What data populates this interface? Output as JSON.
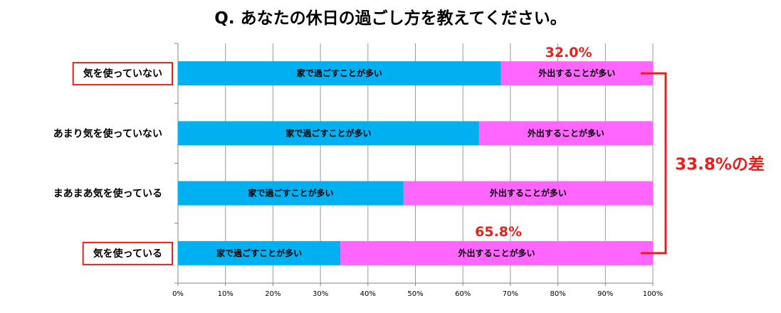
{
  "chart_data": {
    "type": "bar",
    "orientation": "horizontal",
    "stacked": "percent",
    "title": "Q. あなたの休日の過ごし方を教えてください。",
    "categories": [
      "気を使っていない",
      "あまり気を使っていない",
      "まあまあ気を使っている",
      "気を使っている"
    ],
    "series": [
      {
        "name": "家で過ごすことが多い",
        "values": [
          68.0,
          63.4,
          47.5,
          34.2
        ],
        "color": "#00b0f0"
      },
      {
        "name": "外出することが多い",
        "values": [
          32.0,
          36.6,
          52.5,
          65.8
        ],
        "color": "#ff66ff"
      }
    ],
    "xlim": [
      0,
      100
    ],
    "x_ticks": [
      "0%",
      "10%",
      "20%",
      "30%",
      "40%",
      "50%",
      "60%",
      "70%",
      "80%",
      "90%",
      "100%"
    ],
    "grid": "vertical",
    "highlighted_categories": [
      "気を使っていない",
      "気を使っている"
    ],
    "annotations": {
      "top_value": "32.0%",
      "bottom_value": "65.8%",
      "difference": "33.8%の差"
    },
    "annotation_color": "#e8201c"
  }
}
